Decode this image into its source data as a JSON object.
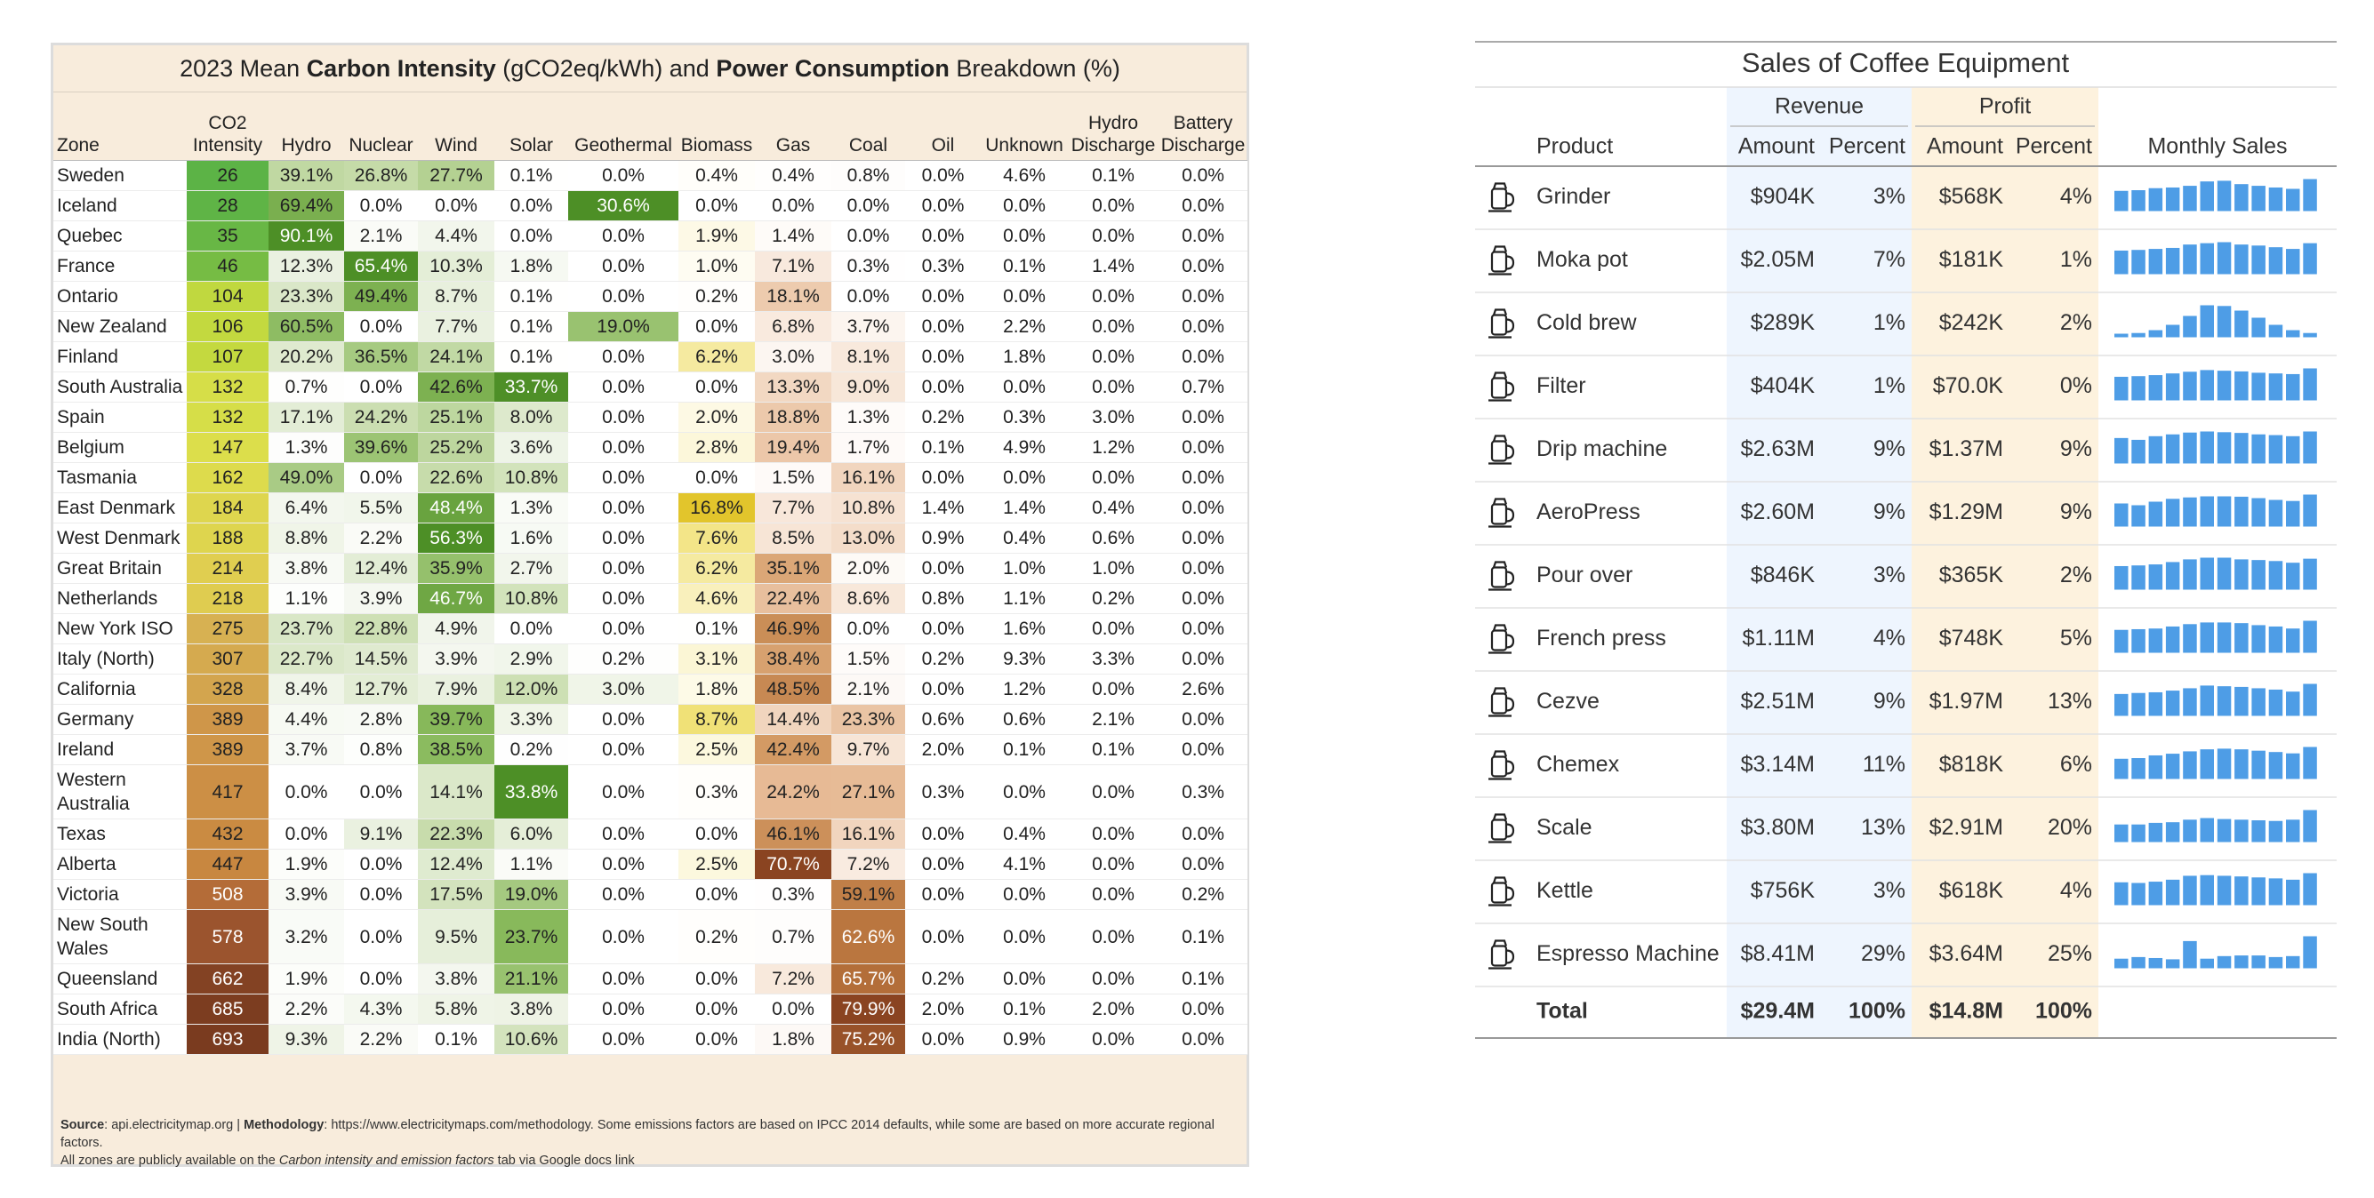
{
  "carbon_table": {
    "title_parts": [
      "2023 Mean ",
      "Carbon Intensity",
      " (gCO2eq/kWh) and ",
      "Power Consumption",
      " Breakdown (%)"
    ],
    "columns": [
      "Zone",
      "CO2 Intensity",
      "Hydro",
      "Nuclear",
      "Wind",
      "Solar",
      "Geothermal",
      "Biomass",
      "Gas",
      "Coal",
      "Oil",
      "Unknown",
      "Hydro Discharge",
      "Battery Discharge"
    ],
    "rows": [
      [
        "Sweden",
        "26",
        "39.1%",
        "26.8%",
        "27.7%",
        "0.1%",
        "0.0%",
        "0.4%",
        "0.4%",
        "0.8%",
        "0.0%",
        "4.6%",
        "0.1%",
        "0.0%"
      ],
      [
        "Iceland",
        "28",
        "69.4%",
        "0.0%",
        "0.0%",
        "0.0%",
        "30.6%",
        "0.0%",
        "0.0%",
        "0.0%",
        "0.0%",
        "0.0%",
        "0.0%",
        "0.0%"
      ],
      [
        "Quebec",
        "35",
        "90.1%",
        "2.1%",
        "4.4%",
        "0.0%",
        "0.0%",
        "1.9%",
        "1.4%",
        "0.0%",
        "0.0%",
        "0.0%",
        "0.0%",
        "0.0%"
      ],
      [
        "France",
        "46",
        "12.3%",
        "65.4%",
        "10.3%",
        "1.8%",
        "0.0%",
        "1.0%",
        "7.1%",
        "0.3%",
        "0.3%",
        "0.1%",
        "1.4%",
        "0.0%"
      ],
      [
        "Ontario",
        "104",
        "23.3%",
        "49.4%",
        "8.7%",
        "0.1%",
        "0.0%",
        "0.2%",
        "18.1%",
        "0.0%",
        "0.0%",
        "0.0%",
        "0.0%",
        "0.0%"
      ],
      [
        "New Zealand",
        "106",
        "60.5%",
        "0.0%",
        "7.7%",
        "0.1%",
        "19.0%",
        "0.0%",
        "6.8%",
        "3.7%",
        "0.0%",
        "2.2%",
        "0.0%",
        "0.0%"
      ],
      [
        "Finland",
        "107",
        "20.2%",
        "36.5%",
        "24.1%",
        "0.1%",
        "0.0%",
        "6.2%",
        "3.0%",
        "8.1%",
        "0.0%",
        "1.8%",
        "0.0%",
        "0.0%"
      ],
      [
        "South Australia",
        "132",
        "0.7%",
        "0.0%",
        "42.6%",
        "33.7%",
        "0.0%",
        "0.0%",
        "13.3%",
        "9.0%",
        "0.0%",
        "0.0%",
        "0.0%",
        "0.7%"
      ],
      [
        "Spain",
        "132",
        "17.1%",
        "24.2%",
        "25.1%",
        "8.0%",
        "0.0%",
        "2.0%",
        "18.8%",
        "1.3%",
        "0.2%",
        "0.3%",
        "3.0%",
        "0.0%"
      ],
      [
        "Belgium",
        "147",
        "1.3%",
        "39.6%",
        "25.2%",
        "3.6%",
        "0.0%",
        "2.8%",
        "19.4%",
        "1.7%",
        "0.1%",
        "4.9%",
        "1.2%",
        "0.0%"
      ],
      [
        "Tasmania",
        "162",
        "49.0%",
        "0.0%",
        "22.6%",
        "10.8%",
        "0.0%",
        "0.0%",
        "1.5%",
        "16.1%",
        "0.0%",
        "0.0%",
        "0.0%",
        "0.0%"
      ],
      [
        "East Denmark",
        "184",
        "6.4%",
        "5.5%",
        "48.4%",
        "1.3%",
        "0.0%",
        "16.8%",
        "7.7%",
        "10.8%",
        "1.4%",
        "1.4%",
        "0.4%",
        "0.0%"
      ],
      [
        "West Denmark",
        "188",
        "8.8%",
        "2.2%",
        "56.3%",
        "1.6%",
        "0.0%",
        "7.6%",
        "8.5%",
        "13.0%",
        "0.9%",
        "0.4%",
        "0.6%",
        "0.0%"
      ],
      [
        "Great Britain",
        "214",
        "3.8%",
        "12.4%",
        "35.9%",
        "2.7%",
        "0.0%",
        "6.2%",
        "35.1%",
        "2.0%",
        "0.0%",
        "1.0%",
        "1.0%",
        "0.0%"
      ],
      [
        "Netherlands",
        "218",
        "1.1%",
        "3.9%",
        "46.7%",
        "10.8%",
        "0.0%",
        "4.6%",
        "22.4%",
        "8.6%",
        "0.8%",
        "1.1%",
        "0.2%",
        "0.0%"
      ],
      [
        "New York ISO",
        "275",
        "23.7%",
        "22.8%",
        "4.9%",
        "0.0%",
        "0.0%",
        "0.1%",
        "46.9%",
        "0.0%",
        "0.0%",
        "1.6%",
        "0.0%",
        "0.0%"
      ],
      [
        "Italy (North)",
        "307",
        "22.7%",
        "14.5%",
        "3.9%",
        "2.9%",
        "0.2%",
        "3.1%",
        "38.4%",
        "1.5%",
        "0.2%",
        "9.3%",
        "3.3%",
        "0.0%"
      ],
      [
        "California",
        "328",
        "8.4%",
        "12.7%",
        "7.9%",
        "12.0%",
        "3.0%",
        "1.8%",
        "48.5%",
        "2.1%",
        "0.0%",
        "1.2%",
        "0.0%",
        "2.6%"
      ],
      [
        "Germany",
        "389",
        "4.4%",
        "2.8%",
        "39.7%",
        "3.3%",
        "0.0%",
        "8.7%",
        "14.4%",
        "23.3%",
        "0.6%",
        "0.6%",
        "2.1%",
        "0.0%"
      ],
      [
        "Ireland",
        "389",
        "3.7%",
        "0.8%",
        "38.5%",
        "0.2%",
        "0.0%",
        "2.5%",
        "42.4%",
        "9.7%",
        "2.0%",
        "0.1%",
        "0.1%",
        "0.0%"
      ],
      [
        "Western Australia",
        "417",
        "0.0%",
        "0.0%",
        "14.1%",
        "33.8%",
        "0.0%",
        "0.3%",
        "24.2%",
        "27.1%",
        "0.3%",
        "0.0%",
        "0.0%",
        "0.3%"
      ],
      [
        "Texas",
        "432",
        "0.0%",
        "9.1%",
        "22.3%",
        "6.0%",
        "0.0%",
        "0.0%",
        "46.1%",
        "16.1%",
        "0.0%",
        "0.4%",
        "0.0%",
        "0.0%"
      ],
      [
        "Alberta",
        "447",
        "1.9%",
        "0.0%",
        "12.4%",
        "1.1%",
        "0.0%",
        "2.5%",
        "70.7%",
        "7.2%",
        "0.0%",
        "4.1%",
        "0.0%",
        "0.0%"
      ],
      [
        "Victoria",
        "508",
        "3.9%",
        "0.0%",
        "17.5%",
        "19.0%",
        "0.0%",
        "0.0%",
        "0.3%",
        "59.1%",
        "0.0%",
        "0.0%",
        "0.0%",
        "0.2%"
      ],
      [
        "New South Wales",
        "578",
        "3.2%",
        "0.0%",
        "9.5%",
        "23.7%",
        "0.0%",
        "0.2%",
        "0.7%",
        "62.6%",
        "0.0%",
        "0.0%",
        "0.0%",
        "0.1%"
      ],
      [
        "Queensland",
        "662",
        "1.9%",
        "0.0%",
        "3.8%",
        "21.1%",
        "0.0%",
        "0.0%",
        "7.2%",
        "65.7%",
        "0.2%",
        "0.0%",
        "0.0%",
        "0.1%"
      ],
      [
        "South Africa",
        "685",
        "2.2%",
        "4.3%",
        "5.8%",
        "3.8%",
        "0.0%",
        "0.0%",
        "0.0%",
        "79.9%",
        "2.0%",
        "0.1%",
        "2.0%",
        "0.0%"
      ],
      [
        "India (North)",
        "693",
        "9.3%",
        "2.2%",
        "0.1%",
        "10.6%",
        "0.0%",
        "0.0%",
        "1.8%",
        "75.2%",
        "0.0%",
        "0.9%",
        "0.0%",
        "0.0%"
      ]
    ],
    "footer": {
      "line1": [
        "Source",
        ": api.electricitymap.org | ",
        "Methodology",
        ": https://www.electricitymaps.com/methodology. Some emissions factors are based on IPCC 2014 defaults, while some are based on more accurate regional factors."
      ],
      "line2": [
        "All zones are publicly available on the ",
        "Carbon intensity and emission factors",
        " tab via Google docs link"
      ]
    }
  },
  "coffee_table": {
    "title": "Sales of Coffee Equipment",
    "groups": [
      "Revenue",
      "Profit"
    ],
    "columns": [
      "Product",
      "Amount",
      "Percent",
      "Amount",
      "Percent",
      "Monthly Sales"
    ],
    "rows": [
      {
        "product": "Grinder",
        "revenue_amount": "$904K",
        "revenue_percent": "3%",
        "profit_amount": "$568K",
        "profit_percent": "4%",
        "monthly_sales": [
          60,
          62,
          68,
          70,
          75,
          88,
          90,
          80,
          75,
          70,
          66,
          95
        ]
      },
      {
        "product": "Moka pot",
        "revenue_amount": "$2.05M",
        "revenue_percent": "7%",
        "profit_amount": "$181K",
        "profit_percent": "1%",
        "monthly_sales": [
          70,
          72,
          75,
          78,
          88,
          92,
          95,
          88,
          85,
          80,
          75,
          92
        ]
      },
      {
        "product": "Cold brew",
        "revenue_amount": "$289K",
        "revenue_percent": "1%",
        "profit_amount": "$242K",
        "profit_percent": "2%",
        "monthly_sales": [
          10,
          12,
          20,
          35,
          60,
          90,
          88,
          75,
          55,
          35,
          20,
          12
        ]
      },
      {
        "product": "Filter",
        "revenue_amount": "$404K",
        "revenue_percent": "1%",
        "profit_amount": "$70.0K",
        "profit_percent": "0%",
        "monthly_sales": [
          70,
          72,
          75,
          80,
          85,
          90,
          88,
          86,
          82,
          80,
          78,
          95
        ]
      },
      {
        "product": "Drip machine",
        "revenue_amount": "$2.63M",
        "revenue_percent": "9%",
        "profit_amount": "$1.37M",
        "profit_percent": "9%",
        "monthly_sales": [
          70,
          65,
          75,
          80,
          85,
          88,
          86,
          84,
          80,
          78,
          75,
          88
        ]
      },
      {
        "product": "AeroPress",
        "revenue_amount": "$2.60M",
        "revenue_percent": "9%",
        "profit_amount": "$1.29M",
        "profit_percent": "9%",
        "monthly_sales": [
          65,
          60,
          70,
          78,
          82,
          85,
          85,
          84,
          80,
          75,
          72,
          90
        ]
      },
      {
        "product": "Pour over",
        "revenue_amount": "$846K",
        "revenue_percent": "3%",
        "profit_amount": "$365K",
        "profit_percent": "2%",
        "monthly_sales": [
          70,
          72,
          75,
          82,
          90,
          95,
          95,
          90,
          88,
          85,
          80,
          92
        ]
      },
      {
        "product": "French press",
        "revenue_amount": "$1.11M",
        "revenue_percent": "4%",
        "profit_amount": "$748K",
        "profit_percent": "5%",
        "monthly_sales": [
          68,
          70,
          72,
          78,
          85,
          90,
          90,
          88,
          82,
          78,
          72,
          95
        ]
      },
      {
        "product": "Cezve",
        "revenue_amount": "$2.51M",
        "revenue_percent": "9%",
        "profit_amount": "$1.97M",
        "profit_percent": "13%",
        "monthly_sales": [
          65,
          68,
          70,
          75,
          82,
          90,
          88,
          86,
          82,
          78,
          72,
          95
        ]
      },
      {
        "product": "Chemex",
        "revenue_amount": "$3.14M",
        "revenue_percent": "11%",
        "profit_amount": "$818K",
        "profit_percent": "6%",
        "monthly_sales": [
          60,
          62,
          70,
          75,
          82,
          88,
          90,
          88,
          84,
          80,
          76,
          95
        ]
      },
      {
        "product": "Scale",
        "revenue_amount": "$3.80M",
        "revenue_percent": "13%",
        "profit_amount": "$2.91M",
        "profit_percent": "20%",
        "monthly_sales": [
          55,
          55,
          60,
          62,
          70,
          75,
          72,
          70,
          68,
          66,
          70,
          100
        ]
      },
      {
        "product": "Kettle",
        "revenue_amount": "$756K",
        "revenue_percent": "3%",
        "profit_amount": "$618K",
        "profit_percent": "4%",
        "monthly_sales": [
          70,
          68,
          72,
          78,
          90,
          92,
          90,
          88,
          85,
          82,
          78,
          98
        ]
      },
      {
        "product": "Espresso Machine",
        "revenue_amount": "$8.41M",
        "revenue_percent": "29%",
        "profit_amount": "$3.64M",
        "profit_percent": "25%",
        "monthly_sales": [
          30,
          35,
          32,
          28,
          85,
          30,
          38,
          40,
          40,
          35,
          38,
          100
        ]
      }
    ],
    "total": {
      "product": "Total",
      "revenue_amount": "$29.4M",
      "revenue_percent": "100%",
      "profit_amount": "$14.8M",
      "profit_percent": "100%"
    }
  }
}
